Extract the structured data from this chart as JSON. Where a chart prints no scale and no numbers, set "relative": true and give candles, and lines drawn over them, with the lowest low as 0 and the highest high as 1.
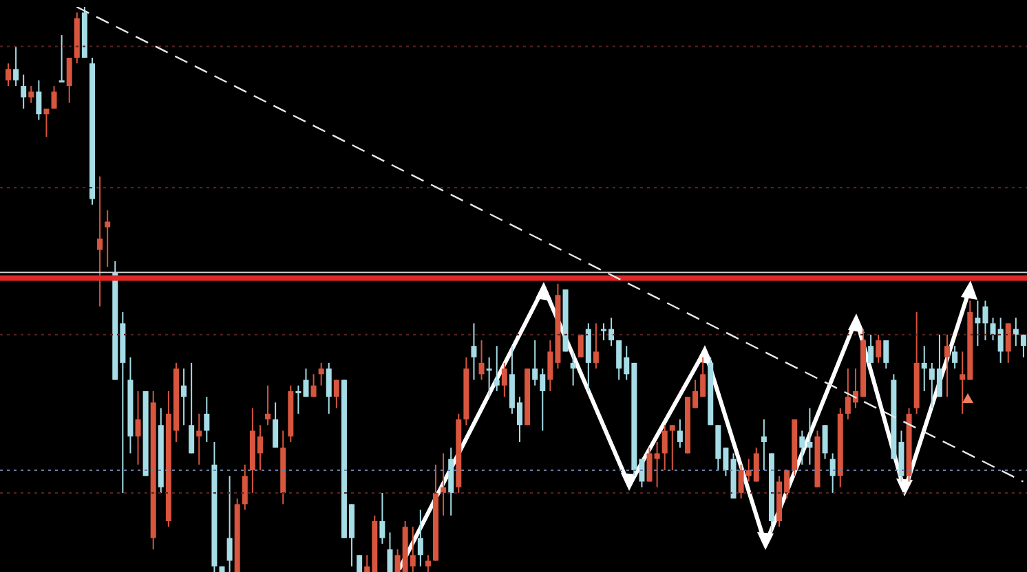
{
  "chart_data": {
    "type": "candlestick",
    "relative": true,
    "tick_labels": false,
    "grid": false,
    "legend": false,
    "categories": [
      null,
      null,
      null,
      null,
      null,
      null,
      null,
      null,
      null,
      null,
      null,
      null,
      null,
      null,
      null,
      null,
      null,
      null,
      null,
      null,
      null,
      null,
      null,
      null,
      null,
      null,
      null,
      null,
      null,
      null,
      null,
      null,
      null,
      null,
      null,
      null,
      null,
      null,
      null,
      null,
      null,
      null,
      null,
      null,
      null,
      null,
      null,
      null,
      null,
      null,
      null,
      null,
      null,
      null,
      null,
      null,
      null,
      null,
      null,
      null,
      null,
      null,
      null,
      null,
      null,
      null,
      null,
      null,
      null,
      null,
      null,
      null,
      null,
      null,
      null,
      null,
      null,
      null,
      null,
      null,
      null,
      null,
      null,
      null,
      null,
      null,
      null,
      null,
      null,
      null,
      null,
      null,
      null,
      null,
      null,
      null,
      null,
      null,
      null,
      null,
      null,
      null,
      null,
      null,
      null,
      null,
      null,
      null,
      null,
      null,
      null,
      null,
      null,
      null,
      null,
      null,
      null,
      null,
      null,
      null,
      null,
      null,
      null,
      null,
      null,
      null,
      null,
      null,
      null,
      null,
      null,
      null,
      null,
      null
    ],
    "ohlc": [
      [
        0.87,
        0.9,
        0.86,
        0.89
      ],
      [
        0.89,
        0.93,
        0.86,
        0.87
      ],
      [
        0.86,
        0.88,
        0.82,
        0.84
      ],
      [
        0.84,
        0.86,
        0.83,
        0.85
      ],
      [
        0.85,
        0.87,
        0.8,
        0.81
      ],
      [
        0.81,
        0.82,
        0.77,
        0.82
      ],
      [
        0.82,
        0.86,
        0.82,
        0.85
      ],
      [
        0.87,
        0.95,
        0.87,
        0.87
      ],
      [
        0.86,
        0.91,
        0.83,
        0.91
      ],
      [
        0.91,
        0.99,
        0.9,
        0.98
      ],
      [
        0.99,
        1,
        0.91,
        0.91
      ],
      [
        0.9,
        0.91,
        0.65,
        0.66
      ],
      [
        0.57,
        0.7,
        0.47,
        0.59
      ],
      [
        0.61,
        0.64,
        0.54,
        0.62
      ],
      [
        0.53,
        0.55,
        0.34,
        0.34
      ],
      [
        0.44,
        0.46,
        0.14,
        0.37
      ],
      [
        0.34,
        0.38,
        0.21,
        0.24
      ],
      [
        0.24,
        0.32,
        0.19,
        0.27
      ],
      [
        0.32,
        0.32,
        0.17,
        0.17
      ],
      [
        0.06,
        0.32,
        0.04,
        0.3
      ],
      [
        0.26,
        0.29,
        0.14,
        0.15
      ],
      [
        0.09,
        0.32,
        0.08,
        0.28
      ],
      [
        0.25,
        0.37,
        0.23,
        0.36
      ],
      [
        0.33,
        0.36,
        0.26,
        0.31
      ],
      [
        0.26,
        0.37,
        0.21,
        0.21
      ],
      [
        0.24,
        0.28,
        0.19,
        0.25
      ],
      [
        0.28,
        0.31,
        0.23,
        0.25
      ],
      [
        0.19,
        0.23,
        0,
        0.01
      ],
      [
        0.01,
        0.01,
        0,
        0
      ],
      [
        0.06,
        0.17,
        0,
        0.02
      ],
      [
        0,
        0.13,
        0,
        0.12
      ],
      [
        0.12,
        0.19,
        0.11,
        0.17
      ],
      [
        0.18,
        0.29,
        0.14,
        0.25
      ],
      [
        0.21,
        0.26,
        0.18,
        0.24
      ],
      [
        0.27,
        0.33,
        0.26,
        0.28
      ],
      [
        0.27,
        0.3,
        0.22,
        0.22
      ],
      [
        0.14,
        0.25,
        0.12,
        0.22
      ],
      [
        0.24,
        0.33,
        0.23,
        0.32
      ],
      [
        0.32,
        0.33,
        0.28,
        0.32
      ],
      [
        0.34,
        0.36,
        0.31,
        0.31
      ],
      [
        0.31,
        0.35,
        0.31,
        0.33
      ],
      [
        0.35,
        0.37,
        0.33,
        0.36
      ],
      [
        0.36,
        0.37,
        0.28,
        0.31
      ],
      [
        0.31,
        0.34,
        0.29,
        0.34
      ],
      [
        0.34,
        0.34,
        0.06,
        0.06
      ],
      [
        0.12,
        0.12,
        0.01,
        0.06
      ],
      [
        0.03,
        0.03,
        0,
        0
      ],
      [
        0,
        0.03,
        0,
        0.01
      ],
      [
        0,
        0.1,
        0,
        0.09
      ],
      [
        0.09,
        0.14,
        0.05,
        0.06
      ],
      [
        0.04,
        0.07,
        0,
        0
      ],
      [
        0,
        0.04,
        0,
        0.03
      ],
      [
        0,
        0.09,
        0,
        0.08
      ],
      [
        0.01,
        0.08,
        0,
        0.03
      ],
      [
        0.06,
        0.11,
        0.01,
        0.03
      ],
      [
        0.01,
        0.03,
        0,
        0.02
      ],
      [
        0.02,
        0.19,
        0.02,
        0.14
      ],
      [
        0.14,
        0.21,
        0.1,
        0.15
      ],
      [
        0.2,
        0.22,
        0.1,
        0.14
      ],
      [
        0.15,
        0.28,
        0.14,
        0.27
      ],
      [
        0.27,
        0.38,
        0.26,
        0.36
      ],
      [
        0.4,
        0.44,
        0.34,
        0.38
      ],
      [
        0.35,
        0.41,
        0.34,
        0.37
      ],
      [
        0.36,
        0.38,
        0.31,
        0.36
      ],
      [
        0.34,
        0.4,
        0.32,
        0.33
      ],
      [
        0.33,
        0.37,
        0.31,
        0.36
      ],
      [
        0.35,
        0.4,
        0.28,
        0.29
      ],
      [
        0.3,
        0.31,
        0.23,
        0.26
      ],
      [
        0.26,
        0.36,
        0.26,
        0.36
      ],
      [
        0.36,
        0.41,
        0.33,
        0.34
      ],
      [
        0.35,
        0.36,
        0.25,
        0.32
      ],
      [
        0.34,
        0.41,
        0.32,
        0.39
      ],
      [
        0.37,
        0.51,
        0.36,
        0.49
      ],
      [
        0.5,
        0.5,
        0.39,
        0.39
      ],
      [
        0.37,
        0.39,
        0.33,
        0.36
      ],
      [
        0.38,
        0.42,
        0.38,
        0.42
      ],
      [
        0.43,
        0.44,
        0.32,
        0.37
      ],
      [
        0.37,
        0.44,
        0.36,
        0.39
      ],
      [
        0.43,
        0.44,
        0.41,
        0.43
      ],
      [
        0.43,
        0.45,
        0.4,
        0.41
      ],
      [
        0.41,
        0.41,
        0.34,
        0.36
      ],
      [
        0.38,
        0.4,
        0.34,
        0.35
      ],
      [
        0.37,
        0.37,
        0.17,
        0.18
      ],
      [
        0.2,
        0.2,
        0.15,
        0.16
      ],
      [
        0.16,
        0.22,
        0.16,
        0.21
      ],
      [
        0.2,
        0.23,
        0.15,
        0.21
      ],
      [
        0.21,
        0.26,
        0.18,
        0.25
      ],
      [
        0.25,
        0.26,
        0.18,
        0.26
      ],
      [
        0.25,
        0.27,
        0.22,
        0.23
      ],
      [
        0.21,
        0.31,
        0.21,
        0.31
      ],
      [
        0.29,
        0.34,
        0.29,
        0.32
      ],
      [
        0.31,
        0.38,
        0.31,
        0.35
      ],
      [
        0.37,
        0.38,
        0.26,
        0.26
      ],
      [
        0.26,
        0.26,
        0.18,
        0.2
      ],
      [
        0.22,
        0.22,
        0.17,
        0.18
      ],
      [
        0.2,
        0.21,
        0.13,
        0.13
      ],
      [
        0.14,
        0.19,
        0.13,
        0.18
      ],
      [
        0.17,
        0.2,
        0.16,
        0.18
      ],
      [
        0.16,
        0.22,
        0.16,
        0.21
      ],
      [
        0.24,
        0.27,
        0.18,
        0.23
      ],
      [
        0.21,
        0.21,
        0.07,
        0.09
      ],
      [
        0.09,
        0.17,
        0.08,
        0.16
      ],
      [
        0.14,
        0.18,
        0.13,
        0.18
      ],
      [
        0.18,
        0.27,
        0.17,
        0.27
      ],
      [
        0.24,
        0.25,
        0.19,
        0.22
      ],
      [
        0.23,
        0.29,
        0.19,
        0.22
      ],
      [
        0.15,
        0.25,
        0.15,
        0.24
      ],
      [
        0.26,
        0.26,
        0.2,
        0.21
      ],
      [
        0.2,
        0.21,
        0.14,
        0.17
      ],
      [
        0.17,
        0.29,
        0.15,
        0.28
      ],
      [
        0.28,
        0.36,
        0.27,
        0.31
      ],
      [
        0.3,
        0.36,
        0.29,
        0.32
      ],
      [
        0.31,
        0.43,
        0.31,
        0.41
      ],
      [
        0.4,
        0.42,
        0.37,
        0.37
      ],
      [
        0.38,
        0.42,
        0.37,
        0.41
      ],
      [
        0.41,
        0.41,
        0.36,
        0.37
      ],
      [
        0.34,
        0.35,
        0.2,
        0.2
      ],
      [
        0.23,
        0.25,
        0.16,
        0.17
      ],
      [
        0.17,
        0.29,
        0.16,
        0.28
      ],
      [
        0.29,
        0.46,
        0.28,
        0.37
      ],
      [
        0.37,
        0.4,
        0.32,
        0.36
      ],
      [
        0.36,
        0.37,
        0.29,
        0.34
      ],
      [
        0.36,
        0.42,
        0.31,
        0.31
      ],
      [
        0.38,
        0.42,
        0.31,
        0.4
      ],
      [
        0.39,
        0.4,
        0.36,
        0.37
      ],
      [
        0.34,
        0.39,
        0.28,
        0.35
      ],
      [
        0.34,
        0.48,
        0.34,
        0.46
      ],
      [
        0.45,
        0.48,
        0.4,
        0.44
      ],
      [
        0.47,
        0.48,
        0.41,
        0.44
      ],
      [
        0.44,
        0.45,
        0.41,
        0.42
      ],
      [
        0.43,
        0.45,
        0.37,
        0.39
      ],
      [
        0.39,
        0.44,
        0.37,
        0.44
      ],
      [
        0.43,
        0.45,
        0.4,
        0.42
      ],
      [
        0.42,
        0.42,
        0.38,
        0.4
      ]
    ],
    "colors": [
      "#d8553e",
      "#a6dce6",
      "#a6dce6",
      "#d8553e",
      "#a6dce6",
      "#d8553e",
      "#d8553e",
      "#a6dce6",
      "#d8553e",
      "#d8553e",
      "#a6dce6",
      "#a6dce6",
      "#d8553e",
      "#d8553e",
      "#a6dce6",
      "#a6dce6",
      "#a6dce6",
      "#d8553e",
      "#a6dce6",
      "#d8553e",
      "#a6dce6",
      "#d8553e",
      "#d8553e",
      "#a6dce6",
      "#a6dce6",
      "#d8553e",
      "#a6dce6",
      "#a6dce6",
      "#a6dce6",
      "#a6dce6",
      "#d8553e",
      "#d8553e",
      "#d8553e",
      "#d8553e",
      "#d8553e",
      "#a6dce6",
      "#d8553e",
      "#d8553e",
      "#a6dce6",
      "#a6dce6",
      "#d8553e",
      "#d8553e",
      "#a6dce6",
      "#d8553e",
      "#a6dce6",
      "#a6dce6",
      "#a6dce6",
      "#d8553e",
      "#d8553e",
      "#a6dce6",
      "#a6dce6",
      "#d8553e",
      "#d8553e",
      "#d8553e",
      "#a6dce6",
      "#d8553e",
      "#d8553e",
      "#d8553e",
      "#a6dce6",
      "#d8553e",
      "#d8553e",
      "#a6dce6",
      "#d8553e",
      "#a6dce6",
      "#a6dce6",
      "#d8553e",
      "#a6dce6",
      "#a6dce6",
      "#d8553e",
      "#a6dce6",
      "#a6dce6",
      "#d8553e",
      "#d8553e",
      "#a6dce6",
      "#a6dce6",
      "#d8553e",
      "#a6dce6",
      "#d8553e",
      "#a6dce6",
      "#a6dce6",
      "#a6dce6",
      "#a6dce6",
      "#a6dce6",
      "#a6dce6",
      "#d8553e",
      "#d8553e",
      "#d8553e",
      "#d8553e",
      "#a6dce6",
      "#d8553e",
      "#d8553e",
      "#d8553e",
      "#a6dce6",
      "#a6dce6",
      "#a6dce6",
      "#a6dce6",
      "#d8553e",
      "#d8553e",
      "#d8553e",
      "#a6dce6",
      "#a6dce6",
      "#d8553e",
      "#d8553e",
      "#d8553e",
      "#a6dce6",
      "#a6dce6",
      "#d8553e",
      "#a6dce6",
      "#a6dce6",
      "#d8553e",
      "#d8553e",
      "#d8553e",
      "#d8553e",
      "#a6dce6",
      "#d8553e",
      "#a6dce6",
      "#a6dce6",
      "#a6dce6",
      "#d8553e",
      "#d8553e",
      "#a6dce6",
      "#a6dce6",
      "#a6dce6",
      "#d8553e",
      "#a6dce6",
      "#d8553e",
      "#d8553e",
      "#a6dce6",
      "#a6dce6",
      "#a6dce6",
      "#a6dce6",
      "#d8553e",
      "#a6dce6",
      "#a6dce6"
    ],
    "series": [
      {
        "type": "line",
        "color": "#e8e8e8",
        "line_style": "dashed",
        "values": [
          null,
          null,
          null,
          null,
          null,
          null,
          null,
          null,
          null,
          1,
          null,
          null,
          null,
          null,
          null,
          null,
          null,
          null,
          null,
          null,
          null,
          null,
          null,
          null,
          null,
          null,
          null,
          null,
          null,
          null,
          null,
          null,
          null,
          null,
          null,
          null,
          null,
          null,
          null,
          null,
          null,
          null,
          null,
          null,
          null,
          null,
          null,
          null,
          null,
          null,
          null,
          null,
          null,
          null,
          null,
          null,
          null,
          null,
          null,
          null,
          null,
          null,
          null,
          null,
          null,
          null,
          null,
          null,
          null,
          null,
          null,
          null,
          null,
          null,
          null,
          null,
          null,
          null,
          null,
          null,
          null,
          null,
          null,
          null,
          null,
          null,
          null,
          null,
          null,
          null,
          null,
          null,
          null,
          null,
          null,
          null,
          null,
          null,
          null,
          null,
          null,
          null,
          null,
          null,
          null,
          null,
          null,
          null,
          null,
          null,
          null,
          null,
          null,
          null,
          null,
          null,
          null,
          null,
          null,
          null,
          null,
          null,
          null,
          null,
          null,
          null,
          null,
          null,
          null,
          null,
          null,
          null,
          null,
          0.16
        ]
      }
    ],
    "ref_lines": [
      {
        "axis": "y",
        "value": 0.53,
        "color": "#d0d0d0",
        "line_style": "solid"
      },
      {
        "axis": "y",
        "value": 0.52,
        "color": "#e02828",
        "line_style": "solid"
      },
      {
        "axis": "y",
        "value": 0.93,
        "color": "#5a2222",
        "line_style": "dotted"
      },
      {
        "axis": "y",
        "value": 0.68,
        "color": "#5a2222",
        "line_style": "dotted"
      },
      {
        "axis": "y",
        "value": 0.42,
        "color": "#5a2222",
        "line_style": "dotted"
      },
      {
        "axis": "y",
        "value": 0.18,
        "color": "#6a7fa8",
        "line_style": "dotted"
      },
      {
        "axis": "y",
        "value": 0.14,
        "color": "#5a2222",
        "line_style": "dotted"
      }
    ]
  }
}
